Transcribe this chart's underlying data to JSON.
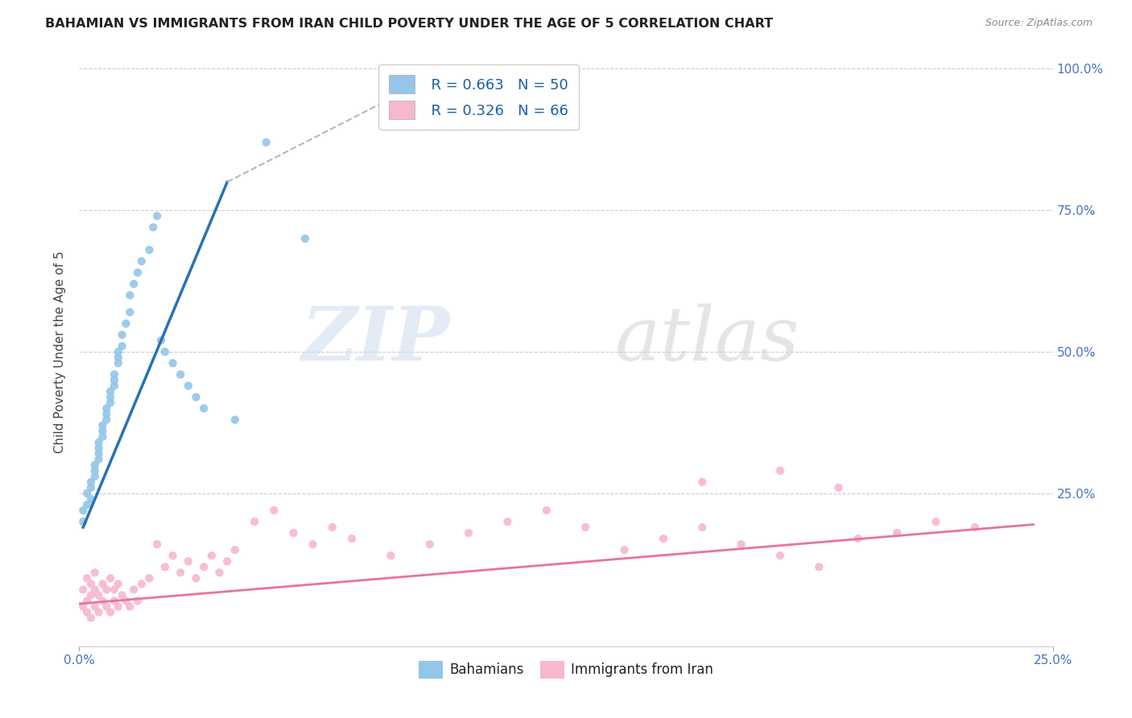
{
  "title": "BAHAMIAN VS IMMIGRANTS FROM IRAN CHILD POVERTY UNDER THE AGE OF 5 CORRELATION CHART",
  "source": "Source: ZipAtlas.com",
  "ylabel_label": "Child Poverty Under the Age of 5",
  "legend_labels": [
    "Bahamians",
    "Immigrants from Iran"
  ],
  "blue_R": "R = 0.663",
  "blue_N": "N = 50",
  "pink_R": "R = 0.326",
  "pink_N": "N = 66",
  "blue_color": "#93c6e8",
  "pink_color": "#f5b8cc",
  "blue_line_color": "#2672b8",
  "pink_line_color": "#e8749a",
  "dash_color": "#b0b8c8",
  "xlim": [
    0.0,
    0.25
  ],
  "ylim": [
    -0.02,
    1.02
  ],
  "blue_scatter_x": [
    0.001,
    0.001,
    0.002,
    0.002,
    0.003,
    0.003,
    0.003,
    0.004,
    0.004,
    0.004,
    0.005,
    0.005,
    0.005,
    0.005,
    0.006,
    0.006,
    0.006,
    0.007,
    0.007,
    0.007,
    0.008,
    0.008,
    0.008,
    0.009,
    0.009,
    0.009,
    0.01,
    0.01,
    0.01,
    0.011,
    0.011,
    0.012,
    0.013,
    0.013,
    0.014,
    0.015,
    0.016,
    0.018,
    0.019,
    0.02,
    0.021,
    0.022,
    0.024,
    0.026,
    0.028,
    0.03,
    0.032,
    0.04,
    0.048,
    0.058
  ],
  "blue_scatter_y": [
    0.2,
    0.22,
    0.23,
    0.25,
    0.24,
    0.26,
    0.27,
    0.28,
    0.29,
    0.3,
    0.31,
    0.32,
    0.33,
    0.34,
    0.35,
    0.36,
    0.37,
    0.38,
    0.39,
    0.4,
    0.41,
    0.42,
    0.43,
    0.44,
    0.45,
    0.46,
    0.48,
    0.49,
    0.5,
    0.51,
    0.53,
    0.55,
    0.57,
    0.6,
    0.62,
    0.64,
    0.66,
    0.68,
    0.72,
    0.74,
    0.52,
    0.5,
    0.48,
    0.46,
    0.44,
    0.42,
    0.4,
    0.38,
    0.87,
    0.7
  ],
  "pink_scatter_x": [
    0.001,
    0.001,
    0.002,
    0.002,
    0.002,
    0.003,
    0.003,
    0.003,
    0.004,
    0.004,
    0.004,
    0.005,
    0.005,
    0.006,
    0.006,
    0.007,
    0.007,
    0.008,
    0.008,
    0.009,
    0.009,
    0.01,
    0.01,
    0.011,
    0.012,
    0.013,
    0.014,
    0.015,
    0.016,
    0.018,
    0.02,
    0.022,
    0.024,
    0.026,
    0.028,
    0.03,
    0.032,
    0.034,
    0.036,
    0.038,
    0.04,
    0.045,
    0.05,
    0.055,
    0.06,
    0.065,
    0.07,
    0.08,
    0.09,
    0.1,
    0.11,
    0.12,
    0.13,
    0.14,
    0.15,
    0.16,
    0.17,
    0.18,
    0.19,
    0.2,
    0.21,
    0.22,
    0.23,
    0.16,
    0.18,
    0.195
  ],
  "pink_scatter_y": [
    0.05,
    0.08,
    0.04,
    0.06,
    0.1,
    0.03,
    0.07,
    0.09,
    0.05,
    0.08,
    0.11,
    0.04,
    0.07,
    0.06,
    0.09,
    0.05,
    0.08,
    0.04,
    0.1,
    0.06,
    0.08,
    0.05,
    0.09,
    0.07,
    0.06,
    0.05,
    0.08,
    0.06,
    0.09,
    0.1,
    0.16,
    0.12,
    0.14,
    0.11,
    0.13,
    0.1,
    0.12,
    0.14,
    0.11,
    0.13,
    0.15,
    0.2,
    0.22,
    0.18,
    0.16,
    0.19,
    0.17,
    0.14,
    0.16,
    0.18,
    0.2,
    0.22,
    0.19,
    0.15,
    0.17,
    0.19,
    0.16,
    0.14,
    0.12,
    0.17,
    0.18,
    0.2,
    0.19,
    0.27,
    0.29,
    0.26
  ],
  "blue_line_x": [
    0.001,
    0.038
  ],
  "blue_line_y": [
    0.19,
    0.8
  ],
  "dash_line_x": [
    0.038,
    0.095
  ],
  "dash_line_y": [
    0.8,
    1.0
  ],
  "pink_line_x": [
    0.0,
    0.245
  ],
  "pink_line_y": [
    0.055,
    0.195
  ]
}
